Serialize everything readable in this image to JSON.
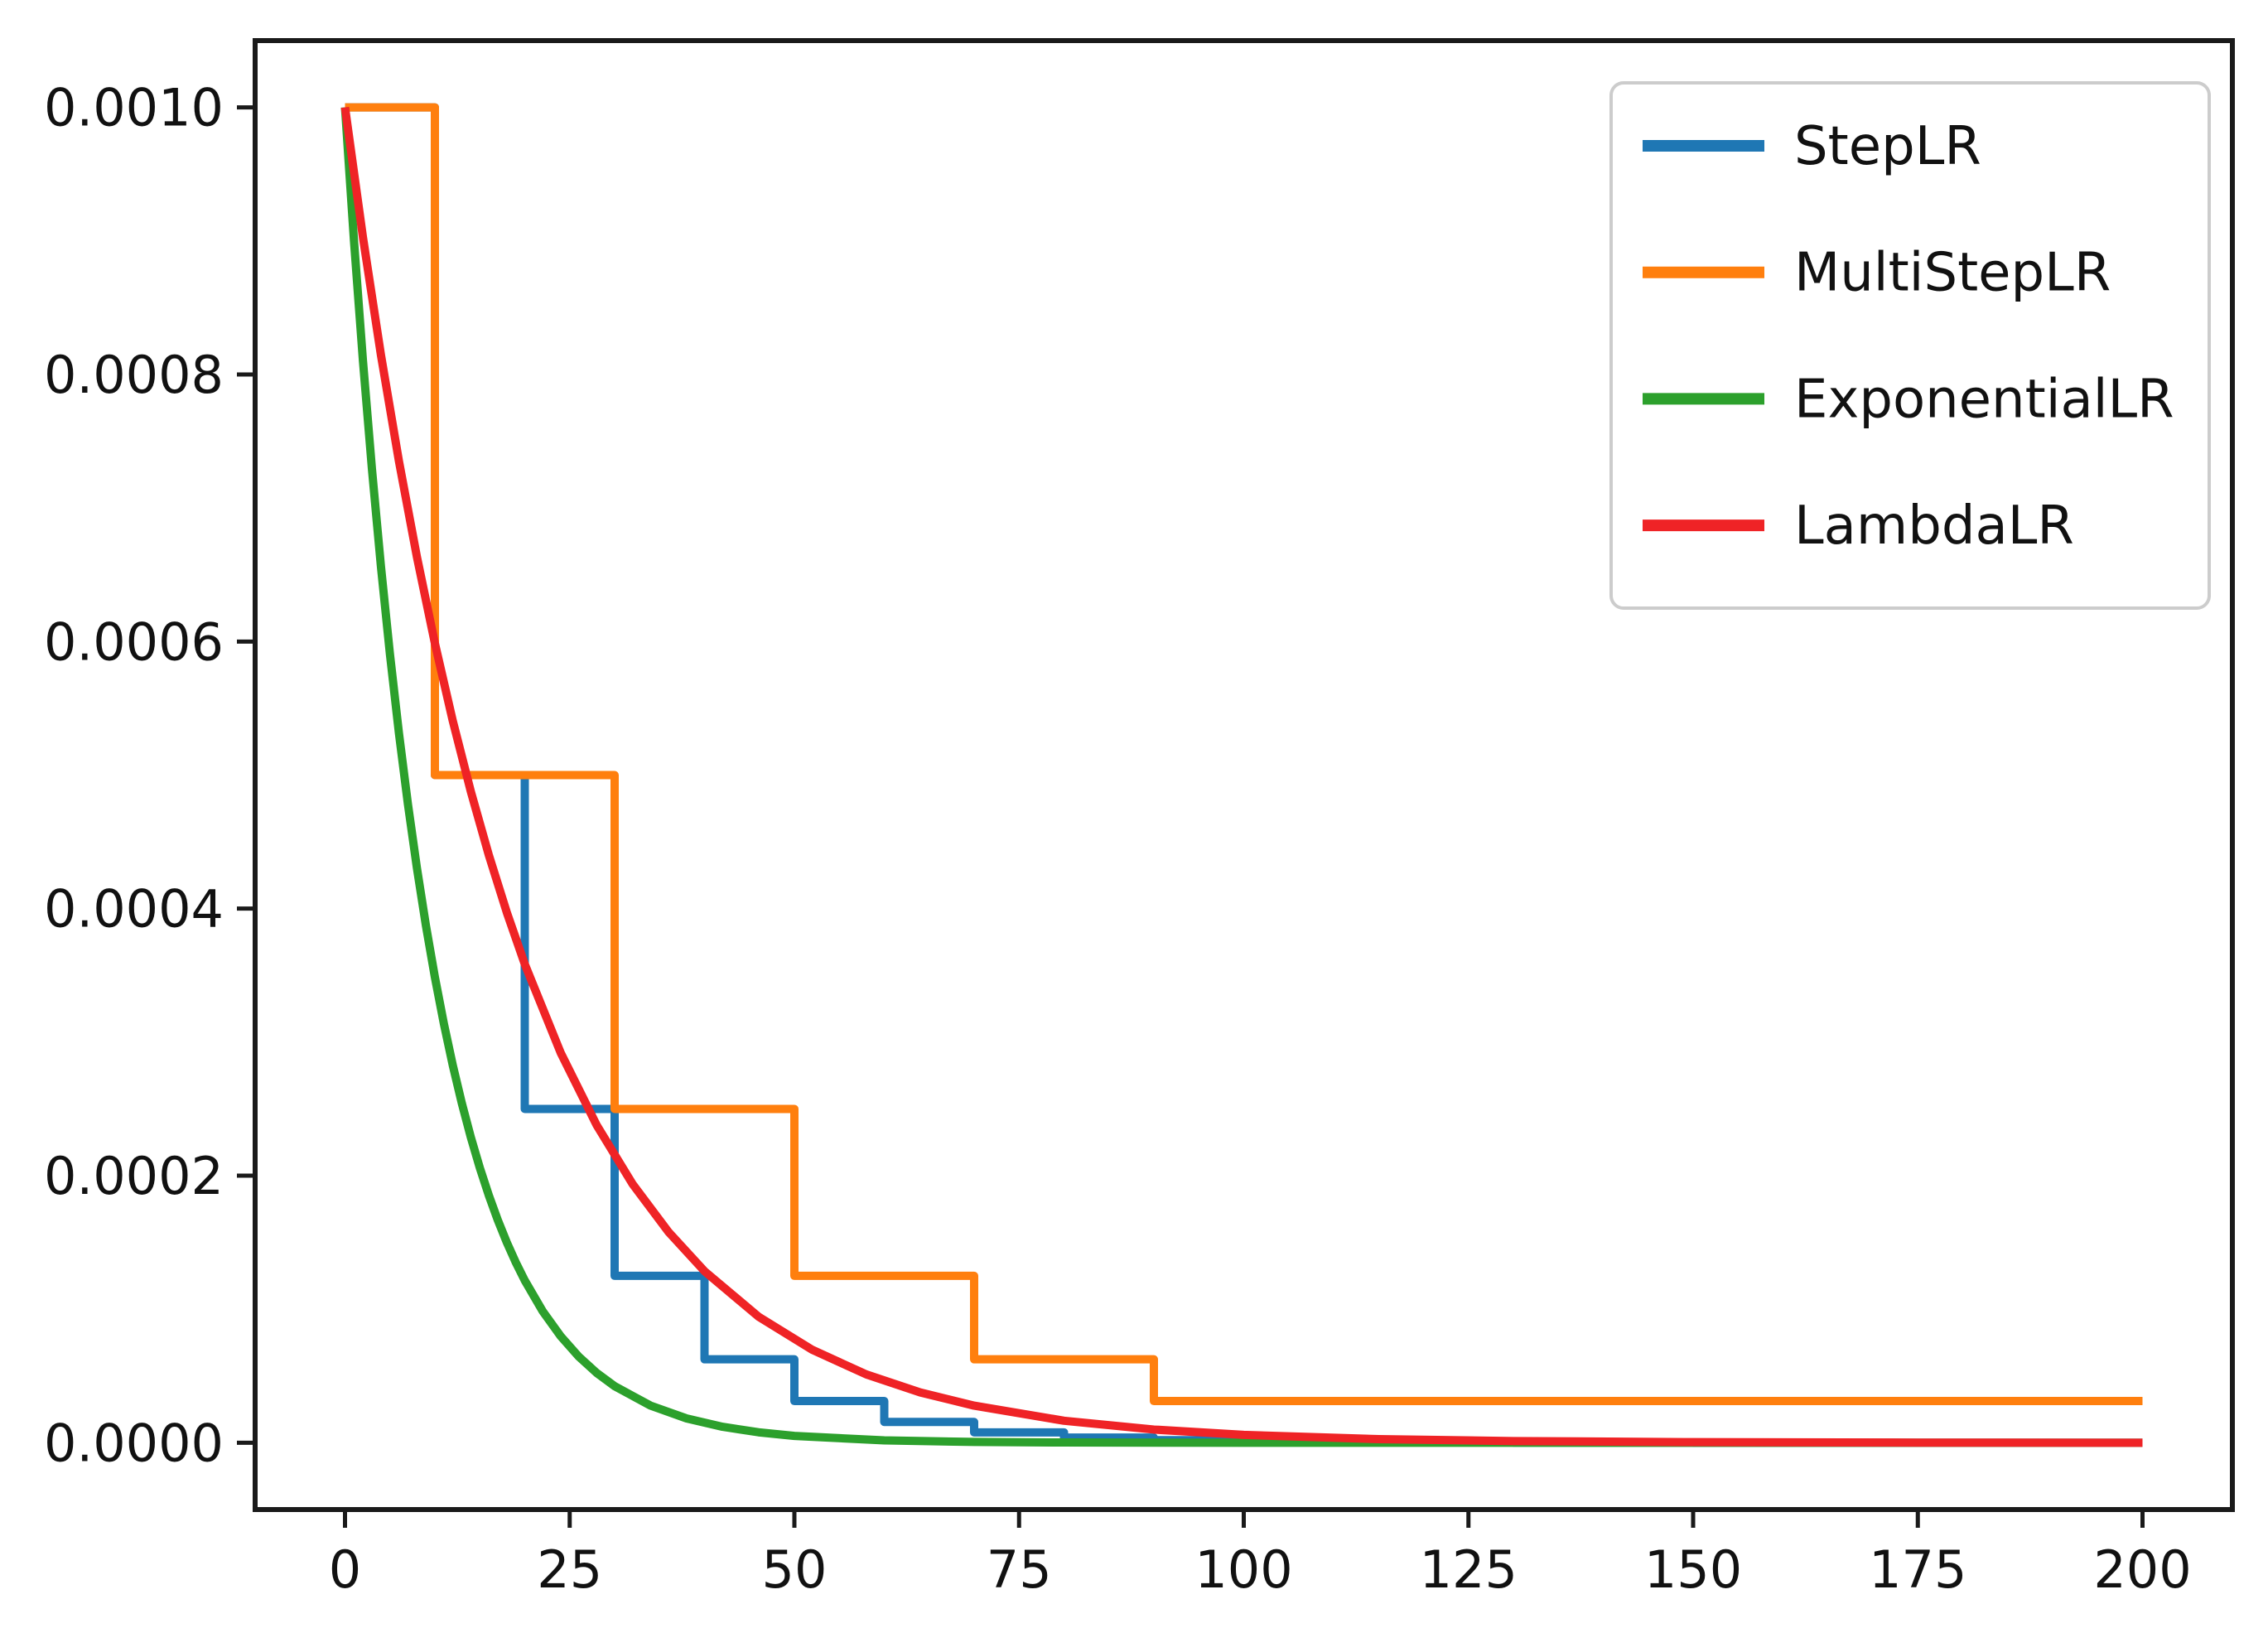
{
  "figure": {
    "background": "#ffffff"
  },
  "chart_data": {
    "type": "line",
    "title": "",
    "xlabel": "",
    "ylabel": "",
    "xlim": [
      -10,
      210
    ],
    "ylim": [
      -5e-05,
      0.00105
    ],
    "grid": false,
    "x_ticks": [
      {
        "v": 0,
        "label": "0"
      },
      {
        "v": 25,
        "label": "25"
      },
      {
        "v": 50,
        "label": "50"
      },
      {
        "v": 75,
        "label": "75"
      },
      {
        "v": 100,
        "label": "100"
      },
      {
        "v": 125,
        "label": "125"
      },
      {
        "v": 150,
        "label": "150"
      },
      {
        "v": 175,
        "label": "175"
      },
      {
        "v": 200,
        "label": "200"
      }
    ],
    "y_ticks": [
      {
        "v": 0.0,
        "label": "0.0000"
      },
      {
        "v": 0.0002,
        "label": "0.0002"
      },
      {
        "v": 0.0004,
        "label": "0.0004"
      },
      {
        "v": 0.0006,
        "label": "0.0006"
      },
      {
        "v": 0.0008,
        "label": "0.0008"
      },
      {
        "v": 0.001,
        "label": "0.0010"
      }
    ],
    "legend": {
      "position": "upper right",
      "entries": [
        {
          "label": "StepLR",
          "color": "#1f77b4"
        },
        {
          "label": "MultiStepLR",
          "color": "#ff7f0e"
        },
        {
          "label": "ExponentialLR",
          "color": "#2ca02c"
        },
        {
          "label": "LambdaLR",
          "color": "#ef2326"
        }
      ]
    },
    "series": [
      {
        "name": "StepLR",
        "color": "#1f77b4",
        "style": "step",
        "edges": [
          0,
          10,
          20,
          30,
          40,
          50,
          60,
          70,
          80,
          90,
          100,
          110,
          120,
          130,
          140,
          150,
          160,
          170,
          180,
          190,
          200
        ],
        "values": [
          0.001,
          0.0005,
          0.00025,
          0.000125,
          6.25e-05,
          3.125e-05,
          1.5625e-05,
          7.8125e-06,
          3.90625e-06,
          1.953125e-06,
          9.765625e-07,
          4.8828125e-07,
          2.44140625e-07,
          1.220703125e-07,
          6.103515625e-08,
          3.0517578125e-08,
          1.52587890625e-08,
          7.62939453125e-09,
          3.814697265625e-09,
          1.9073486328125e-09
        ]
      },
      {
        "name": "MultiStepLR",
        "color": "#ff7f0e",
        "style": "step",
        "edges": [
          0,
          10,
          30,
          50,
          70,
          90,
          200
        ],
        "values": [
          0.001,
          0.0005,
          0.00025,
          0.000125,
          6.25e-05,
          3.125e-05
        ]
      },
      {
        "name": "ExponentialLR",
        "color": "#2ca02c",
        "style": "line",
        "x": [
          0,
          1,
          2,
          3,
          4,
          5,
          6,
          7,
          8,
          9,
          10,
          11,
          12,
          13,
          14,
          15,
          16,
          17,
          18,
          19,
          20,
          22,
          24,
          26,
          28,
          30,
          34,
          38,
          42,
          46,
          50,
          60,
          70,
          80,
          100,
          140,
          200
        ],
        "y": [
          0.001,
          0.0009,
          0.00081,
          0.000729,
          0.0006561,
          0.00059049,
          0.00053144,
          0.0004783,
          0.00043047,
          0.00038742,
          0.00034868,
          0.00031381,
          0.00028243,
          0.00025419,
          0.00022877,
          0.00020589,
          0.0001853,
          0.00016677,
          0.00015009,
          0.00013509,
          0.00012158,
          9.848e-05,
          7.977e-05,
          6.461e-05,
          5.233e-05,
          4.239e-05,
          2.782e-05,
          1.826e-05,
          1.198e-05,
          7.86e-06,
          5.15e-06,
          1.8e-06,
          6.3e-07,
          2.2e-07,
          2.7e-08,
          4e-10,
          0
        ]
      },
      {
        "name": "LambdaLR",
        "color": "#ef2326",
        "style": "line",
        "x": [
          0,
          2,
          4,
          6,
          8,
          10,
          12,
          14,
          16,
          18,
          20,
          24,
          28,
          32,
          36,
          40,
          46,
          52,
          58,
          64,
          70,
          80,
          90,
          100,
          115,
          130,
          150,
          175,
          200
        ],
        "y": [
          0.001,
          0.0009025,
          0.00081451,
          0.00073509,
          0.00066342,
          0.00059874,
          0.00054036,
          0.00048767,
          0.00044013,
          0.00039721,
          0.00035849,
          0.00029201,
          0.00023786,
          0.00019375,
          0.00015782,
          0.00012851,
          9.45e-05,
          6.96e-05,
          5.12e-05,
          3.77e-05,
          2.78e-05,
          1.65e-05,
          9.9e-06,
          5.9e-06,
          2.7e-06,
          1.3e-06,
          4.6e-07,
          1.3e-07,
          3.5e-08
        ]
      }
    ]
  }
}
